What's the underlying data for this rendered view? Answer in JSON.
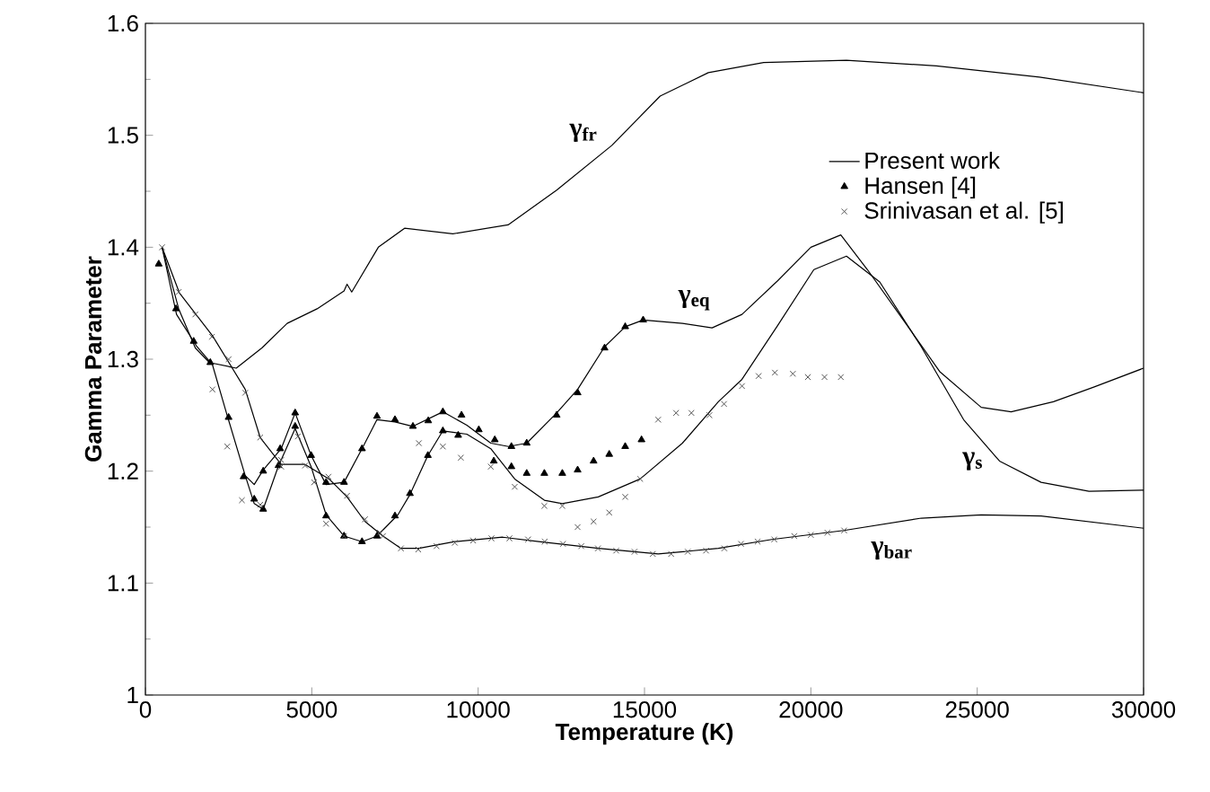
{
  "chart_data": {
    "type": "line",
    "xlabel": "Temperature (K)",
    "ylabel": "Gamma Parameter",
    "xlim": [
      0,
      30000
    ],
    "xticks": [
      0,
      5000,
      10000,
      15000,
      20000,
      25000,
      30000
    ],
    "ylim": [
      1,
      1.6
    ],
    "yticks": [
      1,
      1.1,
      1.2,
      1.3,
      1.4,
      1.5,
      1.6
    ],
    "legend": "top right",
    "grid": false,
    "series": [
      {
        "name": "Present work",
        "color": "#000000",
        "marker": "none",
        "line_style": "solid",
        "x": [
          500,
          1000,
          1500,
          1925,
          2730,
          3500,
          4260,
          5160,
          5970,
          6060,
          6200,
          7000,
          7790,
          9240,
          10900,
          12360,
          14020,
          15470,
          16920,
          18580,
          21070,
          23770,
          26870,
          30000
        ],
        "values": [
          1.4,
          1.345,
          1.31,
          1.297,
          1.292,
          1.31,
          1.332,
          1.345,
          1.361,
          1.367,
          1.36,
          1.4,
          1.417,
          1.412,
          1.42,
          1.451,
          1.491,
          1.535,
          1.556,
          1.565,
          1.567,
          1.562,
          1.552,
          1.538
        ]
      },
      {
        "color": "#000000",
        "marker": "none",
        "line_style": "solid",
        "x": [
          500,
          935,
          1530,
          2015,
          2465,
          3000,
          3270,
          3540,
          4080,
          4500,
          4980,
          5430,
          5970,
          6510,
          6960,
          7500,
          8040,
          8940,
          9660,
          10380,
          10910,
          11460,
          12360,
          12990,
          13800,
          14420,
          14960,
          16140,
          17030,
          17930,
          19000,
          20000,
          20900,
          21700,
          22970,
          23870,
          25120,
          26020,
          27290,
          28500,
          30000
        ],
        "values": [
          1.4,
          1.34,
          1.312,
          1.295,
          1.249,
          1.196,
          1.188,
          1.201,
          1.22,
          1.252,
          1.214,
          1.188,
          1.19,
          1.22,
          1.246,
          1.244,
          1.24,
          1.253,
          1.241,
          1.225,
          1.222,
          1.225,
          1.252,
          1.273,
          1.311,
          1.329,
          1.335,
          1.332,
          1.328,
          1.34,
          1.37,
          1.4,
          1.411,
          1.38,
          1.327,
          1.289,
          1.257,
          1.253,
          1.262,
          1.275,
          1.292
        ]
      },
      {
        "color": "#000000",
        "marker": "none",
        "line_style": "solid",
        "x": [
          3000,
          3270,
          3540,
          3990,
          4500,
          4980,
          5430,
          5970,
          6510,
          6960,
          7590,
          7950,
          8490,
          8940,
          9660,
          10380,
          11100,
          11990,
          12530,
          13610,
          14870,
          16140,
          17220,
          17930,
          19000,
          20090,
          21070,
          22070,
          23320,
          24590,
          25670,
          26920,
          28360,
          30000
        ],
        "values": [
          1.196,
          1.171,
          1.166,
          1.204,
          1.238,
          1.204,
          1.161,
          1.142,
          1.137,
          1.142,
          1.161,
          1.179,
          1.214,
          1.236,
          1.233,
          1.22,
          1.193,
          1.174,
          1.171,
          1.177,
          1.193,
          1.225,
          1.262,
          1.282,
          1.33,
          1.38,
          1.392,
          1.369,
          1.311,
          1.246,
          1.209,
          1.19,
          1.182,
          1.183
        ]
      },
      {
        "color": "#000000",
        "marker": "none",
        "line_style": "solid",
        "x": [
          500,
          1025,
          2015,
          3000,
          3450,
          4080,
          4800,
          5520,
          6060,
          6600,
          7140,
          7680,
          8220,
          9300,
          10740,
          11820,
          13610,
          15410,
          17220,
          18830,
          20990,
          23320,
          25120,
          26920,
          30000
        ],
        "values": [
          1.4,
          1.359,
          1.321,
          1.273,
          1.23,
          1.206,
          1.206,
          1.193,
          1.177,
          1.155,
          1.142,
          1.131,
          1.131,
          1.137,
          1.141,
          1.137,
          1.131,
          1.126,
          1.131,
          1.139,
          1.147,
          1.158,
          1.161,
          1.16,
          1.149
        ]
      },
      {
        "name": "Hansen [4]",
        "type": "scatter",
        "color": "#000000",
        "marker": "triangle",
        "x": [
          400,
          920,
          1450,
          1950,
          2500,
          2950,
          3540,
          4050,
          4500,
          4980,
          5430,
          5970,
          6510,
          6960,
          7500,
          8040,
          8500,
          8940,
          9500,
          10020,
          10500,
          11000,
          11460,
          12360,
          12990,
          13800,
          14420,
          14960,
          3270,
          3540,
          4000,
          4500,
          5430,
          5970,
          6510,
          6960,
          7500,
          7950,
          8490,
          8940,
          9400,
          10470,
          11000,
          11460,
          11990,
          12530,
          12990,
          13470,
          13940,
          14420,
          14910
        ],
        "values": [
          1.385,
          1.345,
          1.316,
          1.297,
          1.248,
          1.195,
          1.2,
          1.22,
          1.252,
          1.214,
          1.19,
          1.19,
          1.22,
          1.249,
          1.246,
          1.24,
          1.245,
          1.253,
          1.25,
          1.237,
          1.228,
          1.222,
          1.225,
          1.25,
          1.27,
          1.31,
          1.329,
          1.335,
          1.175,
          1.166,
          1.205,
          1.24,
          1.16,
          1.142,
          1.137,
          1.142,
          1.16,
          1.18,
          1.214,
          1.236,
          1.232,
          1.209,
          1.204,
          1.198,
          1.198,
          1.198,
          1.201,
          1.209,
          1.215,
          1.222,
          1.228
        ]
      },
      {
        "name": "Srinivasan et al. [5]",
        "type": "scatter",
        "color": "#555555",
        "marker": "cross",
        "x": [
          500,
          1000,
          1500,
          2000,
          2500,
          3000,
          3450,
          4080,
          4800,
          5500,
          6060,
          6600,
          7140,
          7680,
          8200,
          8750,
          9300,
          9850,
          10400,
          10940,
          11500,
          12000,
          12550,
          13100,
          13600,
          14150,
          14700,
          15250,
          15800,
          16300,
          16850,
          17400,
          17900,
          18400,
          18900,
          19500,
          20000,
          20500,
          21000,
          2015,
          2460,
          2900,
          3450,
          4080,
          4580,
          5070,
          5430,
          5970,
          7050,
          8220,
          8940,
          9480,
          10380,
          11100,
          11990,
          12530,
          12990,
          13470,
          13940,
          14420,
          14870,
          15410,
          15950,
          16410,
          16950,
          17390,
          17930,
          18430,
          18920,
          19460,
          19910,
          20410,
          20900
        ],
        "values": [
          1.4,
          1.36,
          1.34,
          1.32,
          1.3,
          1.27,
          1.23,
          1.21,
          1.205,
          1.195,
          1.178,
          1.157,
          1.142,
          1.131,
          1.13,
          1.133,
          1.136,
          1.138,
          1.14,
          1.14,
          1.139,
          1.137,
          1.135,
          1.133,
          1.131,
          1.129,
          1.128,
          1.126,
          1.126,
          1.128,
          1.129,
          1.131,
          1.135,
          1.137,
          1.139,
          1.142,
          1.143,
          1.145,
          1.147,
          1.273,
          1.222,
          1.174,
          1.17,
          1.204,
          1.231,
          1.19,
          1.153,
          1.142,
          1.145,
          1.225,
          1.222,
          1.212,
          1.204,
          1.186,
          1.169,
          1.169,
          1.15,
          1.155,
          1.163,
          1.177,
          1.193,
          1.246,
          1.252,
          1.252,
          1.25,
          1.26,
          1.276,
          1.285,
          1.288,
          1.287,
          1.284,
          1.284,
          1.284
        ]
      }
    ],
    "annotations": [
      "γ$_{fr}$",
      "γ$_{eq}$",
      "γ$_{s}$",
      "γ$_{bar}$"
    ]
  }
}
